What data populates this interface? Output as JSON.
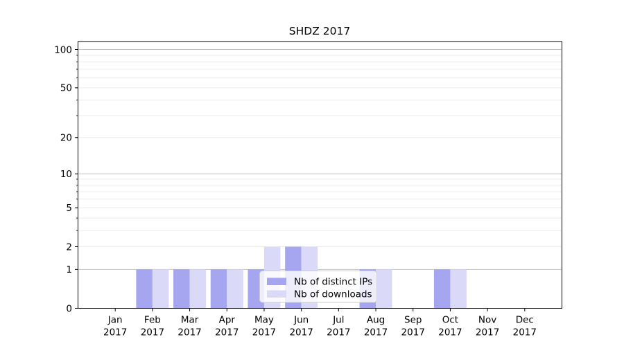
{
  "chart_data": {
    "type": "bar",
    "title": "SHDZ 2017",
    "xlabel": "",
    "ylabel": "",
    "categories": [
      "Jan",
      "Feb",
      "Mar",
      "Apr",
      "May",
      "Jun",
      "Jul",
      "Aug",
      "Sep",
      "Oct",
      "Nov",
      "Dec"
    ],
    "category_year": "2017",
    "series": [
      {
        "key": "distinct-ips",
        "name": "Nb of distinct IPs",
        "color": "#a5a5f0",
        "values": [
          0,
          1,
          1,
          1,
          1,
          2,
          0,
          1,
          0,
          1,
          0,
          0
        ]
      },
      {
        "key": "downloads",
        "name": "Nb of downloads",
        "color": "#dadaf8",
        "values": [
          0,
          1,
          1,
          1,
          2,
          2,
          0,
          1,
          0,
          1,
          0,
          0
        ]
      }
    ],
    "y_axis": {
      "scale": "log1p",
      "tick_values": [
        0,
        1,
        2,
        5,
        10,
        20,
        50,
        100
      ],
      "major_grid": [
        1,
        10,
        100
      ],
      "minor_grid": [
        2,
        3,
        4,
        5,
        6,
        7,
        8,
        9,
        20,
        30,
        40,
        50,
        60,
        70,
        80,
        90
      ],
      "ylim": [
        0,
        115
      ]
    },
    "legend": {
      "entries": [
        "Nb of distinct IPs",
        "Nb of downloads"
      ],
      "location": "lower center"
    },
    "grid": true,
    "colors": {
      "background": "#ffffff",
      "spine": "#000000",
      "text": "#000000",
      "grid_major": "#c2c2c2",
      "grid_minor": "#ececec",
      "legend_bg": "rgba(255,255,255,0.8)",
      "legend_border": "#cccccc"
    }
  }
}
